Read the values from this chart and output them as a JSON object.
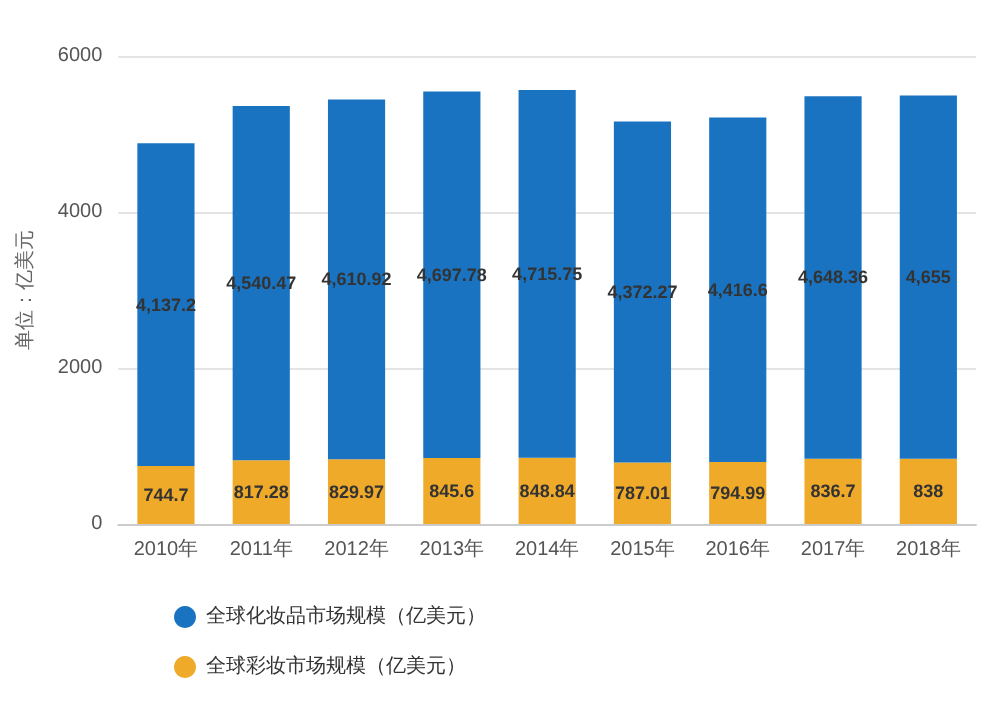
{
  "chart_data": {
    "type": "bar",
    "stacked": true,
    "ylabel": "单位：亿美元",
    "categories": [
      "2010年",
      "2011年",
      "2012年",
      "2013年",
      "2014年",
      "2015年",
      "2016年",
      "2017年",
      "2018年"
    ],
    "series": [
      {
        "name": "全球彩妆市场规模（亿美元）",
        "color": "#f0aa2a",
        "values": [
          744.7,
          817.28,
          829.97,
          845.6,
          848.84,
          787.01,
          794.99,
          836.7,
          838
        ],
        "value_labels": [
          "744.7",
          "817.28",
          "829.97",
          "845.6",
          "848.84",
          "787.01",
          "794.99",
          "836.7",
          "838"
        ]
      },
      {
        "name": "全球化妆品市场规模（亿美元）",
        "color": "#1a73c0",
        "values": [
          4137.2,
          4540.47,
          4610.92,
          4697.78,
          4715.75,
          4372.27,
          4416.6,
          4648.36,
          4655
        ],
        "value_labels": [
          "4,137.2",
          "4,540.47",
          "4,610.92",
          "4,697.78",
          "4,715.75",
          "4,372.27",
          "4,416.6",
          "4,648.36",
          "4,655"
        ]
      }
    ],
    "ylim": [
      0,
      6000
    ],
    "yticks": [
      0,
      2000,
      4000,
      6000
    ],
    "grid": "y",
    "legend": "bottom"
  }
}
